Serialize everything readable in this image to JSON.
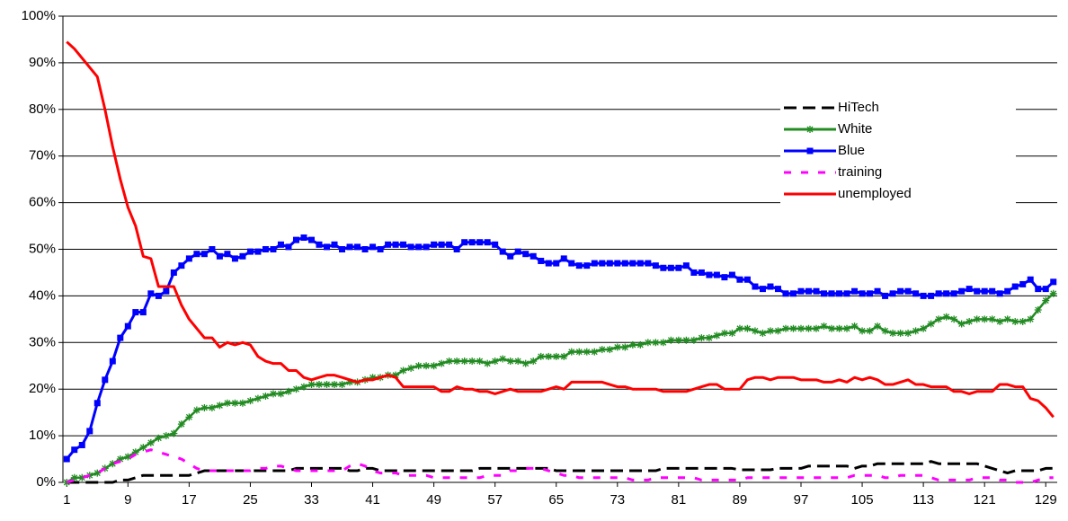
{
  "chart_data": {
    "type": "line",
    "x": [
      1,
      2,
      3,
      4,
      5,
      6,
      7,
      8,
      9,
      10,
      11,
      12,
      13,
      14,
      15,
      16,
      17,
      18,
      19,
      20,
      21,
      22,
      23,
      24,
      25,
      26,
      27,
      28,
      29,
      30,
      31,
      32,
      33,
      34,
      35,
      36,
      37,
      38,
      39,
      40,
      41,
      42,
      43,
      44,
      45,
      46,
      47,
      48,
      49,
      50,
      51,
      52,
      53,
      54,
      55,
      56,
      57,
      58,
      59,
      60,
      61,
      62,
      63,
      64,
      65,
      66,
      67,
      68,
      69,
      70,
      71,
      72,
      73,
      74,
      75,
      76,
      77,
      78,
      79,
      80,
      81,
      82,
      83,
      84,
      85,
      86,
      87,
      88,
      89,
      90,
      91,
      92,
      93,
      94,
      95,
      96,
      97,
      98,
      99,
      100,
      101,
      102,
      103,
      104,
      105,
      106,
      107,
      108,
      109,
      110,
      111,
      112,
      113,
      114,
      115,
      116,
      117,
      118,
      119,
      120,
      121,
      122,
      123,
      124,
      125,
      126,
      127,
      128,
      129,
      130
    ],
    "xlim": [
      0.5,
      130.5
    ],
    "xticks": [
      1,
      9,
      17,
      25,
      33,
      41,
      49,
      57,
      65,
      73,
      81,
      89,
      97,
      105,
      113,
      121,
      129
    ],
    "ylim": [
      0,
      100
    ],
    "yticks": [
      {
        "value": 0,
        "label": "0%"
      },
      {
        "value": 10,
        "label": "10%"
      },
      {
        "value": 20,
        "label": "20%"
      },
      {
        "value": 30,
        "label": "30%"
      },
      {
        "value": 40,
        "label": "40%"
      },
      {
        "value": 50,
        "label": "50%"
      },
      {
        "value": 60,
        "label": "60%"
      },
      {
        "value": 70,
        "label": "70%"
      },
      {
        "value": 80,
        "label": "80%"
      },
      {
        "value": 90,
        "label": "90%"
      },
      {
        "value": 100,
        "label": "100%"
      }
    ],
    "grid": true,
    "legend": "right",
    "series": [
      {
        "name": "HiTech",
        "color": "#000000",
        "dash": "14,7",
        "marker": "none",
        "values": [
          0,
          0,
          0,
          0,
          0,
          0,
          0,
          0.5,
          0.5,
          1,
          1.5,
          1.5,
          1.5,
          1.5,
          1.5,
          1.5,
          1.5,
          2,
          2.5,
          2.5,
          2.5,
          2.5,
          2.5,
          2.5,
          2.5,
          2.5,
          2.5,
          2.5,
          2.5,
          2.5,
          3,
          3,
          3,
          3,
          3,
          3,
          3,
          2.5,
          2.5,
          3,
          3,
          2.5,
          2.5,
          2.5,
          2.5,
          2.5,
          2.5,
          2.5,
          2.5,
          2.5,
          2.5,
          2.5,
          2.5,
          2.5,
          3,
          3,
          3,
          3,
          3,
          3,
          3,
          3,
          3,
          3,
          2.5,
          2.5,
          2.5,
          2.5,
          2.5,
          2.5,
          2.5,
          2.5,
          2.5,
          2.5,
          2.5,
          2.5,
          2.5,
          2.5,
          3,
          3,
          3,
          3,
          3,
          3,
          3,
          3,
          3,
          3,
          2.7,
          2.7,
          2.7,
          2.7,
          2.7,
          3,
          3,
          3,
          3,
          3.5,
          3.5,
          3.5,
          3.5,
          3.5,
          3.5,
          3,
          3.5,
          3.5,
          4,
          4,
          4,
          4,
          4,
          4,
          4,
          4.5,
          4,
          4,
          4,
          4,
          4,
          4,
          3.5,
          3,
          2.5,
          2,
          2.5,
          2.5,
          2.5,
          2.5,
          3,
          3
        ]
      },
      {
        "name": "White",
        "color": "#228b22",
        "dash": "none",
        "marker": "asterisk",
        "values": [
          0,
          1,
          1,
          1.5,
          2,
          3,
          4,
          5,
          5.5,
          6.5,
          7.5,
          8.5,
          9.5,
          10,
          10.5,
          12.5,
          14,
          15.5,
          16,
          16,
          16.5,
          17,
          17,
          17,
          17.5,
          18,
          18.5,
          19,
          19,
          19.5,
          20,
          20.5,
          21,
          21,
          21,
          21,
          21,
          21.5,
          21.5,
          22,
          22.5,
          22.5,
          23,
          23,
          24,
          24.5,
          25,
          25,
          25,
          25.5,
          26,
          26,
          26,
          26,
          26,
          25.5,
          26,
          26.5,
          26,
          26,
          25.5,
          26,
          27,
          27,
          27,
          27,
          28,
          28,
          28,
          28,
          28.5,
          28.5,
          29,
          29,
          29.5,
          29.5,
          30,
          30,
          30,
          30.5,
          30.5,
          30.5,
          30.5,
          31,
          31,
          31.5,
          32,
          32,
          33,
          33,
          32.5,
          32,
          32.5,
          32.5,
          33,
          33,
          33,
          33,
          33,
          33.5,
          33,
          33,
          33,
          33.5,
          32.5,
          32.5,
          33.5,
          32.5,
          32,
          32,
          32,
          32.5,
          33,
          34,
          35,
          35.5,
          35,
          34,
          34.5,
          35,
          35,
          35,
          34.5,
          35,
          34.5,
          34.5,
          35,
          37,
          39,
          40.5
        ]
      },
      {
        "name": "Blue",
        "color": "#0000ff",
        "dash": "none",
        "marker": "square",
        "values": [
          5,
          7,
          8,
          11,
          17,
          22,
          26,
          31,
          33.5,
          36.5,
          36.5,
          40.5,
          40,
          41,
          45,
          46.5,
          48,
          49,
          49,
          50,
          48.5,
          49,
          48,
          48.5,
          49.5,
          49.5,
          50,
          50,
          51,
          50.5,
          52,
          52.5,
          52,
          51,
          50.5,
          51,
          50,
          50.5,
          50.5,
          50,
          50.5,
          50,
          51,
          51,
          51,
          50.5,
          50.5,
          50.5,
          51,
          51,
          51,
          50,
          51.5,
          51.5,
          51.5,
          51.5,
          51,
          49.5,
          48.5,
          49.5,
          49,
          48.5,
          47.5,
          47,
          47,
          48,
          47,
          46.5,
          46.5,
          47,
          47,
          47,
          47,
          47,
          47,
          47,
          47,
          46.5,
          46,
          46,
          46,
          46.5,
          45,
          45,
          44.5,
          44.5,
          44,
          44.5,
          43.5,
          43.5,
          42,
          41.5,
          42,
          41.5,
          40.5,
          40.5,
          41,
          41,
          41,
          40.5,
          40.5,
          40.5,
          40.5,
          41,
          40.5,
          40.5,
          41,
          40,
          40.5,
          41,
          41,
          40.5,
          40,
          40,
          40.5,
          40.5,
          40.5,
          41,
          41.5,
          41,
          41,
          41,
          40.5,
          41,
          42,
          42.5,
          43.5,
          41.5,
          41.5,
          43
        ]
      },
      {
        "name": "training",
        "color": "#ff00ff",
        "dash": "8,11",
        "marker": "none",
        "values": [
          0,
          0.5,
          1,
          1.5,
          2,
          3,
          4,
          4.5,
          5,
          6,
          6.5,
          7,
          6.5,
          6,
          5.5,
          5,
          4,
          3,
          2.5,
          2.5,
          2.5,
          2.5,
          2.5,
          2.5,
          2.5,
          3,
          3,
          3.5,
          3.5,
          3,
          2.5,
          2.5,
          2.5,
          2.5,
          2.5,
          2.5,
          2.5,
          3.5,
          4,
          3.5,
          2.5,
          2,
          2,
          2,
          1.5,
          1.5,
          1.5,
          1.5,
          1,
          1,
          1,
          1,
          1,
          1,
          1,
          1.5,
          1.5,
          1.5,
          2.5,
          2.5,
          3,
          3,
          3,
          2.5,
          2,
          1.5,
          1.5,
          1,
          1,
          1,
          1,
          1,
          1,
          1,
          0.5,
          0.5,
          0.5,
          1,
          1,
          1,
          1,
          1,
          1,
          0.5,
          0.5,
          0.5,
          0.5,
          0.5,
          0.5,
          1,
          1,
          1,
          1,
          1,
          1,
          1,
          1,
          1,
          1,
          1,
          1,
          1,
          1,
          1.5,
          1.5,
          1.5,
          1.5,
          1,
          1,
          1.5,
          1.5,
          1.5,
          1.5,
          1,
          0.5,
          0.5,
          0.5,
          0.5,
          0.5,
          1,
          1,
          1,
          0.5,
          0.5,
          0,
          0,
          0,
          0.5,
          1,
          1
        ]
      },
      {
        "name": "unemployed",
        "color": "#ff0000",
        "dash": "none",
        "marker": "none",
        "values": [
          94.5,
          93,
          91,
          89,
          87,
          80,
          72,
          65,
          59,
          55,
          48.5,
          48,
          42,
          42,
          42,
          38,
          35,
          33,
          31,
          31,
          29,
          30,
          29.5,
          30,
          29.5,
          27,
          26,
          25.5,
          25.5,
          24,
          24,
          22.5,
          22,
          22.5,
          23,
          23,
          22.5,
          22,
          21.5,
          22,
          22,
          22.5,
          23,
          22.5,
          20.5,
          20.5,
          20.5,
          20.5,
          20.5,
          19.5,
          19.5,
          20.5,
          20,
          20,
          19.5,
          19.5,
          19,
          19.5,
          20,
          19.5,
          19.5,
          19.5,
          19.5,
          20,
          20.5,
          20,
          21.5,
          21.5,
          21.5,
          21.5,
          21.5,
          21,
          20.5,
          20.5,
          20,
          20,
          20,
          20,
          19.5,
          19.5,
          19.5,
          19.5,
          20,
          20.5,
          21,
          21,
          20,
          20,
          20,
          22,
          22.5,
          22.5,
          22,
          22.5,
          22.5,
          22.5,
          22,
          22,
          22,
          21.5,
          21.5,
          22,
          21.5,
          22.5,
          22,
          22.5,
          22,
          21,
          21,
          21.5,
          22,
          21,
          21,
          20.5,
          20.5,
          20.5,
          19.5,
          19.5,
          19,
          19.5,
          19.5,
          19.5,
          21,
          21,
          20.5,
          20.5,
          18,
          17.5,
          16,
          14
        ]
      }
    ]
  }
}
